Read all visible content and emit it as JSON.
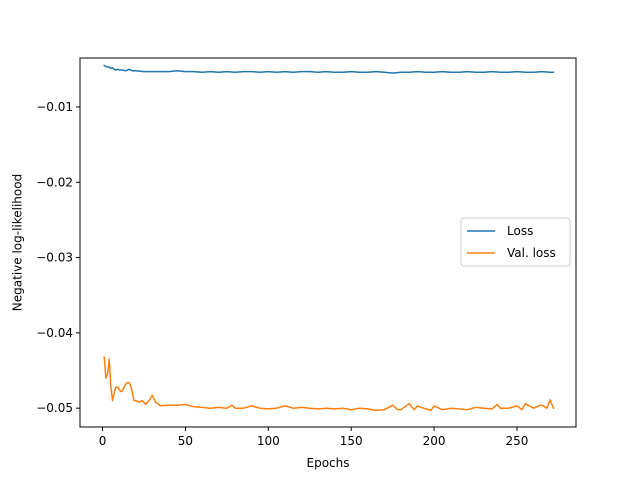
{
  "chart_data": {
    "type": "line",
    "title": "",
    "xlabel": "Epochs",
    "ylabel": "Negative log-likelihood",
    "xlim": [
      -13.6,
      285.6
    ],
    "ylim": [
      -0.0525,
      -0.0035
    ],
    "xticks": [
      0,
      50,
      100,
      150,
      200,
      250
    ],
    "xtick_labels": [
      "0",
      "50",
      "100",
      "150",
      "200",
      "250"
    ],
    "yticks": [
      -0.01,
      -0.02,
      -0.03,
      -0.04,
      -0.05
    ],
    "ytick_labels": [
      "−0.01",
      "−0.02",
      "−0.03",
      "−0.04",
      "−0.05"
    ],
    "grid": false,
    "legend_position": "center-right",
    "series": [
      {
        "name": "Loss",
        "color": "#1f77b4",
        "x": [
          1,
          2,
          3,
          4,
          5,
          6,
          7,
          8,
          9,
          10,
          12,
          14,
          16,
          18,
          20,
          25,
          30,
          35,
          40,
          45,
          50,
          55,
          60,
          65,
          70,
          75,
          80,
          85,
          90,
          95,
          100,
          105,
          110,
          115,
          120,
          125,
          130,
          135,
          140,
          145,
          150,
          155,
          160,
          165,
          170,
          175,
          180,
          185,
          190,
          195,
          200,
          205,
          210,
          215,
          220,
          225,
          230,
          235,
          240,
          245,
          250,
          255,
          260,
          265,
          270,
          272
        ],
        "y": [
          -0.0045,
          -0.0046,
          -0.0047,
          -0.0047,
          -0.0049,
          -0.0048,
          -0.005,
          -0.0051,
          -0.005,
          -0.0051,
          -0.0051,
          -0.0052,
          -0.005,
          -0.0052,
          -0.0052,
          -0.0053,
          -0.0053,
          -0.0053,
          -0.0053,
          -0.0052,
          -0.0053,
          -0.0053,
          -0.0054,
          -0.0053,
          -0.0054,
          -0.0053,
          -0.0054,
          -0.0053,
          -0.0053,
          -0.0054,
          -0.0053,
          -0.0054,
          -0.0053,
          -0.0054,
          -0.0053,
          -0.0053,
          -0.0054,
          -0.0053,
          -0.0054,
          -0.0054,
          -0.0053,
          -0.0054,
          -0.0054,
          -0.0053,
          -0.0054,
          -0.0055,
          -0.0054,
          -0.0054,
          -0.0053,
          -0.0054,
          -0.0054,
          -0.0053,
          -0.0054,
          -0.0054,
          -0.0053,
          -0.0054,
          -0.0054,
          -0.0053,
          -0.0054,
          -0.0054,
          -0.0053,
          -0.0054,
          -0.0054,
          -0.0053,
          -0.0054,
          -0.0054
        ]
      },
      {
        "name": "Val. loss",
        "color": "#ff7f0e",
        "x": [
          1,
          2,
          3,
          4,
          5,
          6,
          7,
          8,
          9,
          10,
          11,
          12,
          13,
          14,
          15,
          16,
          17,
          18,
          19,
          20,
          22,
          24,
          26,
          28,
          30,
          32,
          35,
          38,
          40,
          45,
          50,
          55,
          60,
          65,
          70,
          75,
          78,
          80,
          85,
          90,
          95,
          100,
          105,
          110,
          115,
          120,
          125,
          130,
          135,
          140,
          145,
          150,
          155,
          160,
          165,
          170,
          175,
          178,
          180,
          185,
          188,
          190,
          195,
          198,
          200,
          205,
          210,
          215,
          220,
          225,
          230,
          235,
          238,
          240,
          245,
          250,
          253,
          255,
          260,
          263,
          265,
          268,
          270,
          272
        ],
        "y": [
          -0.0432,
          -0.046,
          -0.0455,
          -0.0435,
          -0.047,
          -0.049,
          -0.048,
          -0.0472,
          -0.0472,
          -0.0475,
          -0.0478,
          -0.0477,
          -0.0472,
          -0.0468,
          -0.0466,
          -0.0466,
          -0.047,
          -0.048,
          -0.049,
          -0.049,
          -0.0492,
          -0.049,
          -0.0495,
          -0.049,
          -0.0483,
          -0.0492,
          -0.0497,
          -0.0496,
          -0.0496,
          -0.0496,
          -0.0495,
          -0.0498,
          -0.0499,
          -0.05,
          -0.0499,
          -0.05,
          -0.0496,
          -0.05,
          -0.05,
          -0.0497,
          -0.05,
          -0.0501,
          -0.05,
          -0.0497,
          -0.05,
          -0.0499,
          -0.05,
          -0.0501,
          -0.05,
          -0.0501,
          -0.05,
          -0.0502,
          -0.05,
          -0.0501,
          -0.0503,
          -0.0502,
          -0.0496,
          -0.0502,
          -0.0502,
          -0.0494,
          -0.0502,
          -0.0497,
          -0.0501,
          -0.0503,
          -0.0497,
          -0.0502,
          -0.05,
          -0.0501,
          -0.0502,
          -0.0499,
          -0.05,
          -0.0501,
          -0.0495,
          -0.05,
          -0.05,
          -0.0497,
          -0.0502,
          -0.0494,
          -0.05,
          -0.0497,
          -0.0496,
          -0.05,
          -0.0489,
          -0.05
        ]
      }
    ]
  }
}
